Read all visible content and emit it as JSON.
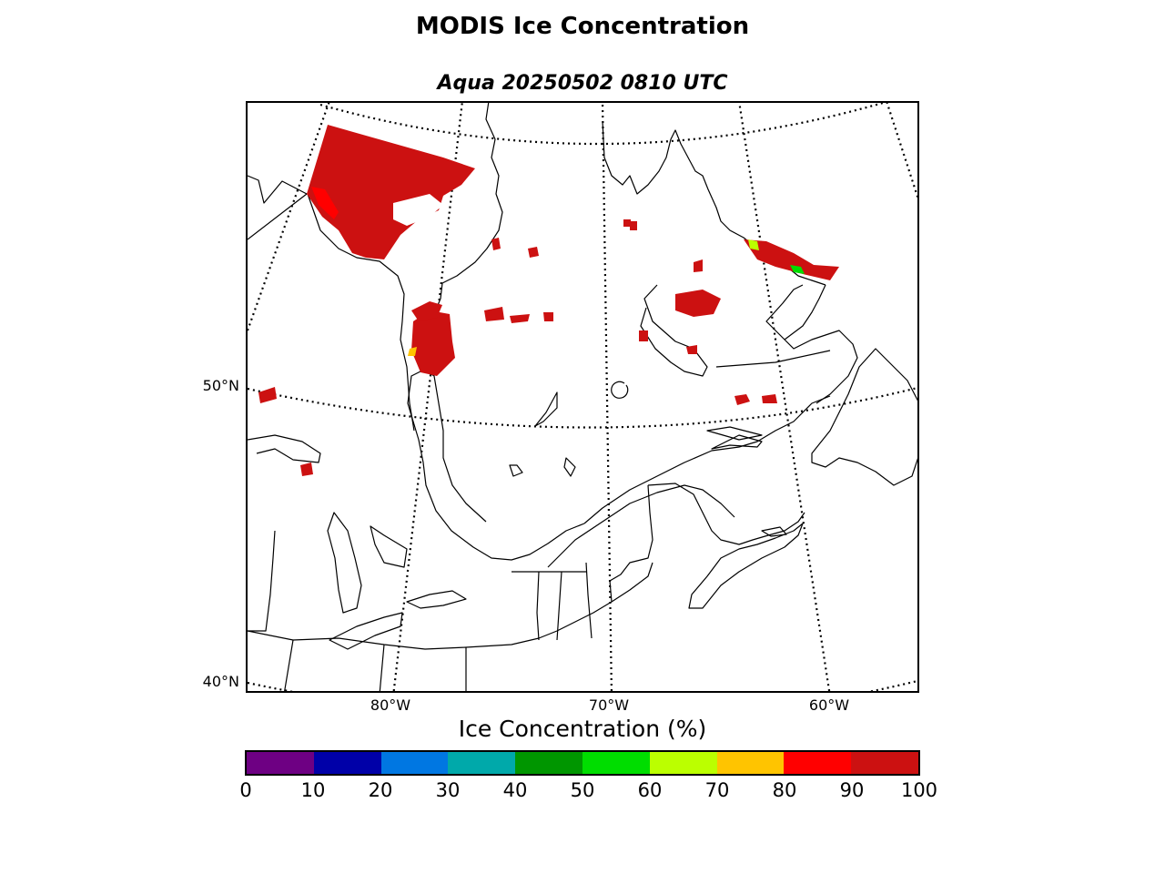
{
  "title": "MODIS Ice Concentration",
  "subtitle": "Aqua 20250502 0810 UTC",
  "map": {
    "lat_labels": [
      "50°N",
      "40°N"
    ],
    "lon_labels": [
      "80°W",
      "70°W",
      "60°W"
    ],
    "graticule_style": "dotted",
    "colors": {
      "ice_high": "#cc1111",
      "ice_mid": "#ff0000",
      "coast": "#000000"
    }
  },
  "colorbar": {
    "title": "Ice Concentration (%)",
    "ticks": [
      "0",
      "10",
      "20",
      "30",
      "40",
      "50",
      "60",
      "70",
      "80",
      "90",
      "100"
    ],
    "colors": [
      "#6e0083",
      "#0000a8",
      "#0077e2",
      "#00a9aa",
      "#009600",
      "#00dd00",
      "#bbff00",
      "#ffc400",
      "#ff0000",
      "#cc1111"
    ]
  }
}
